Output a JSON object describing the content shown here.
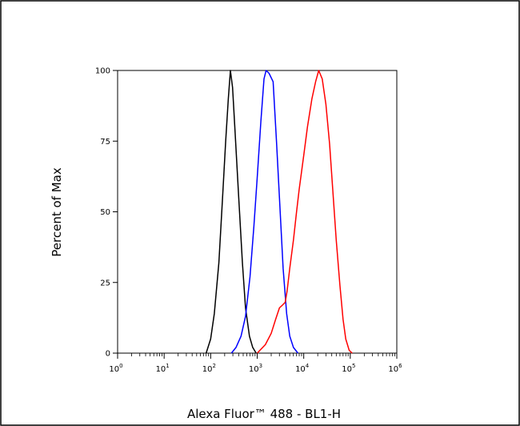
{
  "chart_data": {
    "type": "line",
    "xlabel": "Alexa Fluor™ 488 - BL1-H",
    "ylabel": "Percent of Max",
    "x_scale": "log",
    "xlim": [
      1,
      1000000
    ],
    "ylim": [
      0,
      100
    ],
    "y_ticks": [
      0,
      25,
      50,
      75,
      100
    ],
    "y_tick_labels": [
      "0",
      "25",
      "50",
      "75",
      "100"
    ],
    "x_ticks": [
      1,
      10,
      100,
      1000,
      10000,
      100000,
      1000000
    ],
    "x_tick_labels": [
      {
        "base": "10",
        "exp": "0"
      },
      {
        "base": "10",
        "exp": "1"
      },
      {
        "base": "10",
        "exp": "2"
      },
      {
        "base": "10",
        "exp": "3"
      },
      {
        "base": "10",
        "exp": "4"
      },
      {
        "base": "10",
        "exp": "5"
      },
      {
        "base": "10",
        "exp": "6"
      }
    ],
    "grid": false,
    "series": [
      {
        "color": "#000000",
        "points": [
          [
            80,
            0
          ],
          [
            100,
            5
          ],
          [
            120,
            14
          ],
          [
            150,
            32
          ],
          [
            180,
            55
          ],
          [
            210,
            75
          ],
          [
            240,
            90
          ],
          [
            265,
            100
          ],
          [
            295,
            94
          ],
          [
            330,
            80
          ],
          [
            400,
            55
          ],
          [
            480,
            32
          ],
          [
            560,
            16
          ],
          [
            680,
            6
          ],
          [
            800,
            2
          ],
          [
            950,
            0
          ]
        ]
      },
      {
        "color": "#0000ff",
        "points": [
          [
            280,
            0
          ],
          [
            350,
            2
          ],
          [
            450,
            6
          ],
          [
            560,
            13
          ],
          [
            700,
            27
          ],
          [
            850,
            45
          ],
          [
            1000,
            62
          ],
          [
            1200,
            82
          ],
          [
            1400,
            97
          ],
          [
            1550,
            100
          ],
          [
            1800,
            99
          ],
          [
            2200,
            96
          ],
          [
            2600,
            75
          ],
          [
            3000,
            55
          ],
          [
            3600,
            30
          ],
          [
            4300,
            14
          ],
          [
            5000,
            6
          ],
          [
            6000,
            2
          ],
          [
            7500,
            0
          ]
        ]
      },
      {
        "color": "#ff0000",
        "points": [
          [
            1000,
            0
          ],
          [
            1500,
            3
          ],
          [
            2000,
            7
          ],
          [
            2500,
            12
          ],
          [
            3000,
            16
          ],
          [
            3500,
            17
          ],
          [
            4000,
            18
          ],
          [
            4400,
            22
          ],
          [
            5000,
            30
          ],
          [
            6000,
            40
          ],
          [
            7000,
            50
          ],
          [
            8000,
            58
          ],
          [
            10000,
            70
          ],
          [
            12000,
            80
          ],
          [
            15000,
            90
          ],
          [
            18000,
            96
          ],
          [
            21000,
            100
          ],
          [
            25000,
            97
          ],
          [
            30000,
            88
          ],
          [
            36000,
            74
          ],
          [
            42000,
            58
          ],
          [
            50000,
            40
          ],
          [
            60000,
            24
          ],
          [
            70000,
            12
          ],
          [
            80000,
            5
          ],
          [
            95000,
            1
          ],
          [
            110000,
            0
          ]
        ]
      }
    ]
  }
}
